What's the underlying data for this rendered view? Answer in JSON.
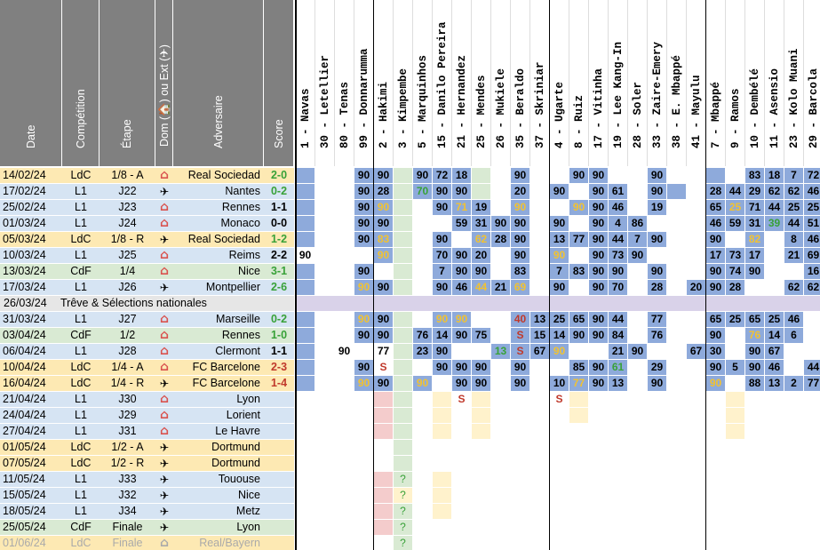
{
  "headers": {
    "date": "Date",
    "competition": "Compétition",
    "stage": "Étape",
    "homeaway": "Dom (🏠) ou Ext (✈)",
    "opponent": "Adversaire",
    "score": "Score"
  },
  "players": [
    {
      "num": "1",
      "name": "Navas"
    },
    {
      "num": "30",
      "name": "Letellier"
    },
    {
      "num": "80",
      "name": "Tenas"
    },
    {
      "num": "99",
      "name": "Donnarumma"
    },
    {
      "num": "2",
      "name": "Hakimi"
    },
    {
      "num": "3",
      "name": "Kimpembe"
    },
    {
      "num": "5",
      "name": "Marquinhos"
    },
    {
      "num": "15",
      "name": "Danilo Pereira"
    },
    {
      "num": "21",
      "name": "Hernandez"
    },
    {
      "num": "25",
      "name": "Mendes"
    },
    {
      "num": "26",
      "name": "Mukiele"
    },
    {
      "num": "35",
      "name": "Beraldo"
    },
    {
      "num": "37",
      "name": "Skriniar"
    },
    {
      "num": "4",
      "name": "Ugarte"
    },
    {
      "num": "8",
      "name": "Ruiz"
    },
    {
      "num": "17",
      "name": "Vitinha"
    },
    {
      "num": "19",
      "name": "Lee Kang-In"
    },
    {
      "num": "28",
      "name": "Soler"
    },
    {
      "num": "33",
      "name": "Zaire-Emery"
    },
    {
      "num": "38",
      "name": "E. Mbappé"
    },
    {
      "num": "41",
      "name": "Mayulu"
    },
    {
      "num": "7",
      "name": "Mbappé"
    },
    {
      "num": "9",
      "name": "Ramos"
    },
    {
      "num": "10",
      "name": "Dembélé"
    },
    {
      "num": "11",
      "name": "Asensio"
    },
    {
      "num": "23",
      "name": "Kolo Muani"
    },
    {
      "num": "29",
      "name": "Barcola"
    }
  ],
  "colors": {
    "ldc": "#fde9b3",
    "l1": "#d6e4f3",
    "cdf": "#d9ead3",
    "blue": "#8eaadb",
    "green": "#d9ead3",
    "pink": "#f4cccc",
    "yellow": "#fff2cc",
    "purple": "#d9d2e9",
    "score_win": "#38a138",
    "score_loss": "#c0392b",
    "score_draw": "#000000",
    "num_yellow": "#f1c232",
    "num_green": "#38a138",
    "num_red": "#c0392b",
    "header_gray": "#808080"
  },
  "matches": [
    {
      "date": "14/02/24",
      "comp": "LdC",
      "stage": "1/8 - A",
      "ha": "home",
      "opp": "Real Sociedad",
      "score": "2-0",
      "res": "W",
      "cells": [
        "b",
        "",
        "",
        "90b",
        "90b",
        "g",
        "90b",
        "72b",
        "18b",
        "g",
        "",
        "90b",
        "",
        "",
        "90b",
        "90b",
        "",
        "",
        "90b",
        "",
        "",
        "b",
        "",
        "83b",
        "18b",
        "7b",
        "72b"
      ]
    },
    {
      "date": "17/02/24",
      "comp": "L1",
      "stage": "J22",
      "ha": "away",
      "opp": "Nantes",
      "score": "0-2",
      "res": "W",
      "cells": [
        "b",
        "",
        "",
        "90b",
        "28b",
        "g",
        "70bG",
        "90b",
        "90b",
        "g",
        "",
        "20b",
        "",
        "90b",
        "",
        "90b",
        "61b",
        "",
        "90b",
        "b",
        "",
        "28b",
        "44b",
        "29b",
        "62b",
        "62b",
        "46b"
      ]
    },
    {
      "date": "25/02/24",
      "comp": "L1",
      "stage": "J23",
      "ha": "home",
      "opp": "Rennes",
      "score": "1-1",
      "res": "D",
      "cells": [
        "b",
        "",
        "",
        "90b",
        "90bY",
        "g",
        "",
        "90b",
        "71bY",
        "19b",
        "",
        "90bY",
        "",
        "",
        "90bY",
        "90b",
        "46b",
        "",
        "19b",
        "",
        "",
        "65b",
        "25bY",
        "71b",
        "44b",
        "25b",
        "25b"
      ]
    },
    {
      "date": "01/03/24",
      "comp": "L1",
      "stage": "J24",
      "ha": "home",
      "opp": "Monaco",
      "score": "0-0",
      "res": "D",
      "cells": [
        "b",
        "",
        "",
        "90b",
        "90b",
        "g",
        "",
        "",
        "59b",
        "31b",
        "90b",
        "90b",
        "",
        "90b",
        "",
        "90b",
        "4b",
        "86b",
        "",
        "",
        "",
        "46b",
        "59b",
        "31b",
        "39bG",
        "44b",
        "51b"
      ]
    },
    {
      "date": "05/03/24",
      "comp": "LdC",
      "stage": "1/8 - R",
      "ha": "away",
      "opp": "Real Sociedad",
      "score": "1-2",
      "res": "W",
      "cells": [
        "b",
        "",
        "",
        "90b",
        "83bY",
        "g",
        "",
        "90b",
        "",
        "62bY",
        "28b",
        "90b",
        "",
        "13b",
        "77b",
        "90b",
        "44b",
        "7b",
        "90b",
        "",
        "",
        "90b",
        "",
        "82bY",
        "",
        "8b",
        "46b"
      ]
    },
    {
      "date": "10/03/24",
      "comp": "L1",
      "stage": "J25",
      "ha": "home",
      "opp": "Reims",
      "score": "2-2",
      "res": "D",
      "cells": [
        "90",
        "",
        "",
        "",
        "90bY",
        "g",
        "",
        "70b",
        "90b",
        "20b",
        "",
        "90b",
        "",
        "90bY",
        "",
        "90b",
        "73b",
        "90b",
        "",
        "",
        "",
        "17b",
        "73b",
        "17b",
        "",
        "21b",
        "69b"
      ]
    },
    {
      "date": "13/03/24",
      "comp": "CdF",
      "stage": "1/4",
      "ha": "home",
      "opp": "Nice",
      "score": "3-1",
      "res": "W",
      "cells": [
        "b",
        "",
        "",
        "90b",
        "",
        "g",
        "",
        "7b",
        "90b",
        "90b",
        "",
        "83b",
        "",
        "7b",
        "83b",
        "90b",
        "90b",
        "",
        "90b",
        "",
        "",
        "90b",
        "74b",
        "90b",
        "",
        "",
        "16b"
      ]
    },
    {
      "date": "17/03/24",
      "comp": "L1",
      "stage": "J26",
      "ha": "away",
      "opp": "Montpellier",
      "score": "2-6",
      "res": "W",
      "cells": [
        "b",
        "",
        "",
        "90bY",
        "90b",
        "g",
        "",
        "90b",
        "46b",
        "44bY",
        "21b",
        "69bY",
        "",
        "90b",
        "",
        "90b",
        "70b",
        "",
        "28b",
        "",
        "20b",
        "90b",
        "28b",
        "",
        "",
        "62b",
        "62b"
      ]
    },
    {
      "special": "26/03/24",
      "label": "Trêve & Sélections nationales"
    },
    {
      "date": "31/03/24",
      "comp": "L1",
      "stage": "J27",
      "ha": "home",
      "opp": "Marseille",
      "score": "0-2",
      "res": "W",
      "cells": [
        "b",
        "",
        "",
        "90bY",
        "90b",
        "g",
        "",
        "90bY",
        "90bY",
        "",
        "",
        "40bR",
        "13b",
        "25b",
        "65b",
        "90b",
        "44b",
        "",
        "77b",
        "",
        "",
        "65b",
        "25b",
        "65b",
        "25b",
        "46b",
        ""
      ]
    },
    {
      "date": "03/04/24",
      "comp": "CdF",
      "stage": "1/2",
      "ha": "home",
      "opp": "Rennes",
      "score": "1-0",
      "res": "W",
      "cells": [
        "b",
        "",
        "",
        "90b",
        "90b",
        "g",
        "76b",
        "14b",
        "90b",
        "75b",
        "",
        "SbR",
        "15b",
        "14b",
        "90b",
        "90b",
        "84b",
        "",
        "76b",
        "",
        "",
        "90b",
        "",
        "76bY",
        "14b",
        "6b",
        ""
      ]
    },
    {
      "date": "06/04/24",
      "comp": "L1",
      "stage": "J28",
      "ha": "home",
      "opp": "Clermont",
      "score": "1-1",
      "res": "D",
      "cells": [
        "b",
        "",
        "90",
        "",
        "77",
        "g",
        "23b",
        "90b",
        "",
        "",
        "13bG",
        "SbR",
        "67b",
        "90bY",
        "",
        "",
        "21b",
        "90b",
        "",
        "",
        "67b",
        "30b",
        "",
        "90b",
        "67b",
        "",
        ""
      ]
    },
    {
      "date": "10/04/24",
      "comp": "LdC",
      "stage": "1/4 - A",
      "ha": "home",
      "opp": "FC Barcelone",
      "score": "2-3",
      "res": "L",
      "cells": [
        "b",
        "",
        "",
        "90b",
        "SR",
        "g",
        "",
        "90b",
        "90b",
        "90b",
        "",
        "90b",
        "",
        "",
        "85b",
        "90b",
        "61bG",
        "",
        "29b",
        "",
        "",
        "90b",
        "5b",
        "90b",
        "46b",
        "",
        "44b"
      ]
    },
    {
      "date": "16/04/24",
      "comp": "LdC",
      "stage": "1/4 - R",
      "ha": "away",
      "opp": "FC Barcelone",
      "score": "1-4",
      "res": "L",
      "cells": [
        "b",
        "",
        "",
        "90bY",
        "90b",
        "g",
        "90bY",
        "",
        "90b",
        "90b",
        "",
        "90b",
        "",
        "10b",
        "77bY",
        "90b",
        "13b",
        "",
        "90b",
        "",
        "",
        "90bY",
        "",
        "88b",
        "13b",
        "2b",
        "77b"
      ]
    },
    {
      "date": "21/04/24",
      "comp": "L1",
      "stage": "J30",
      "ha": "home",
      "opp": "Lyon",
      "score": "",
      "res": "",
      "cells": [
        "",
        "",
        "",
        "",
        "p",
        "g",
        "",
        "y",
        "SR",
        "y",
        "",
        "",
        "",
        "SR",
        "y",
        "",
        "",
        "",
        "",
        "",
        "",
        "",
        "y",
        "",
        "",
        "",
        ""
      ]
    },
    {
      "date": "24/04/24",
      "comp": "L1",
      "stage": "J29",
      "ha": "home",
      "opp": "Lorient",
      "score": "",
      "res": "",
      "cells": [
        "",
        "",
        "",
        "",
        "p",
        "g",
        "",
        "y",
        "",
        "y",
        "",
        "",
        "",
        "",
        "y",
        "",
        "",
        "",
        "",
        "",
        "",
        "",
        "y",
        "",
        "",
        "",
        ""
      ]
    },
    {
      "date": "27/04/24",
      "comp": "L1",
      "stage": "J31",
      "ha": "home",
      "opp": "Le Havre",
      "score": "",
      "res": "",
      "cells": [
        "",
        "",
        "",
        "",
        "p",
        "g",
        "",
        "y",
        "",
        "y",
        "",
        "",
        "",
        "",
        "",
        "",
        "",
        "",
        "",
        "",
        "",
        "",
        "y",
        "",
        "",
        "",
        ""
      ]
    },
    {
      "date": "01/05/24",
      "comp": "LdC",
      "stage": "1/2 - A",
      "ha": "away",
      "opp": "Dortmund",
      "score": "",
      "res": "",
      "cells": [
        "",
        "",
        "",
        "",
        "",
        "g",
        "",
        "",
        "",
        "",
        "",
        "",
        "",
        "",
        "",
        "",
        "",
        "",
        "",
        "",
        "",
        "",
        "",
        "",
        "",
        "",
        ""
      ]
    },
    {
      "date": "07/05/24",
      "comp": "LdC",
      "stage": "1/2 - R",
      "ha": "away",
      "opp": "Dortmund",
      "score": "",
      "res": "",
      "cells": [
        "",
        "",
        "",
        "",
        "",
        "g",
        "",
        "",
        "",
        "",
        "",
        "",
        "",
        "",
        "",
        "",
        "",
        "",
        "",
        "",
        "",
        "",
        "",
        "",
        "",
        "",
        ""
      ]
    },
    {
      "date": "11/05/24",
      "comp": "L1",
      "stage": "J33",
      "ha": "away",
      "opp": "Tououse",
      "score": "",
      "res": "",
      "cells": [
        "",
        "",
        "",
        "",
        "p",
        "?",
        "",
        "y",
        "",
        "",
        "",
        "",
        "",
        "",
        "",
        "",
        "",
        "",
        "",
        "",
        "",
        "",
        "",
        "",
        "",
        "",
        ""
      ]
    },
    {
      "date": "15/05/24",
      "comp": "L1",
      "stage": "J32",
      "ha": "away",
      "opp": "Nice",
      "score": "",
      "res": "",
      "cells": [
        "",
        "",
        "",
        "",
        "p",
        "?Y",
        "",
        "y",
        "",
        "",
        "",
        "",
        "",
        "",
        "",
        "",
        "",
        "",
        "",
        "",
        "",
        "",
        "",
        "",
        "",
        "",
        ""
      ]
    },
    {
      "date": "18/05/24",
      "comp": "L1",
      "stage": "J34",
      "ha": "away",
      "opp": "Metz",
      "score": "",
      "res": "",
      "cells": [
        "",
        "",
        "",
        "",
        "p",
        "?",
        "",
        "y",
        "",
        "",
        "",
        "",
        "",
        "",
        "",
        "",
        "",
        "",
        "",
        "",
        "",
        "",
        "",
        "",
        "",
        "",
        ""
      ]
    },
    {
      "date": "25/05/24",
      "comp": "CdF",
      "stage": "Finale",
      "ha": "away",
      "opp": "Lyon",
      "score": "",
      "res": "",
      "cells": [
        "",
        "",
        "",
        "",
        "p",
        "?",
        "",
        "",
        "",
        "",
        "",
        "",
        "",
        "",
        "",
        "",
        "",
        "",
        "",
        "",
        "",
        "",
        "",
        "",
        "",
        "",
        ""
      ]
    },
    {
      "date": "01/06/24",
      "comp": "LdC",
      "stage": "Finale",
      "ha": "home",
      "opp": "Real/Bayern",
      "score": "",
      "res": "",
      "faded": true,
      "cells": [
        "",
        "",
        "",
        "",
        "",
        "?",
        "",
        "",
        "",
        "",
        "",
        "",
        "",
        "",
        "",
        "",
        "",
        "",
        "",
        "",
        "",
        "",
        "",
        "",
        "",
        "",
        ""
      ]
    }
  ]
}
